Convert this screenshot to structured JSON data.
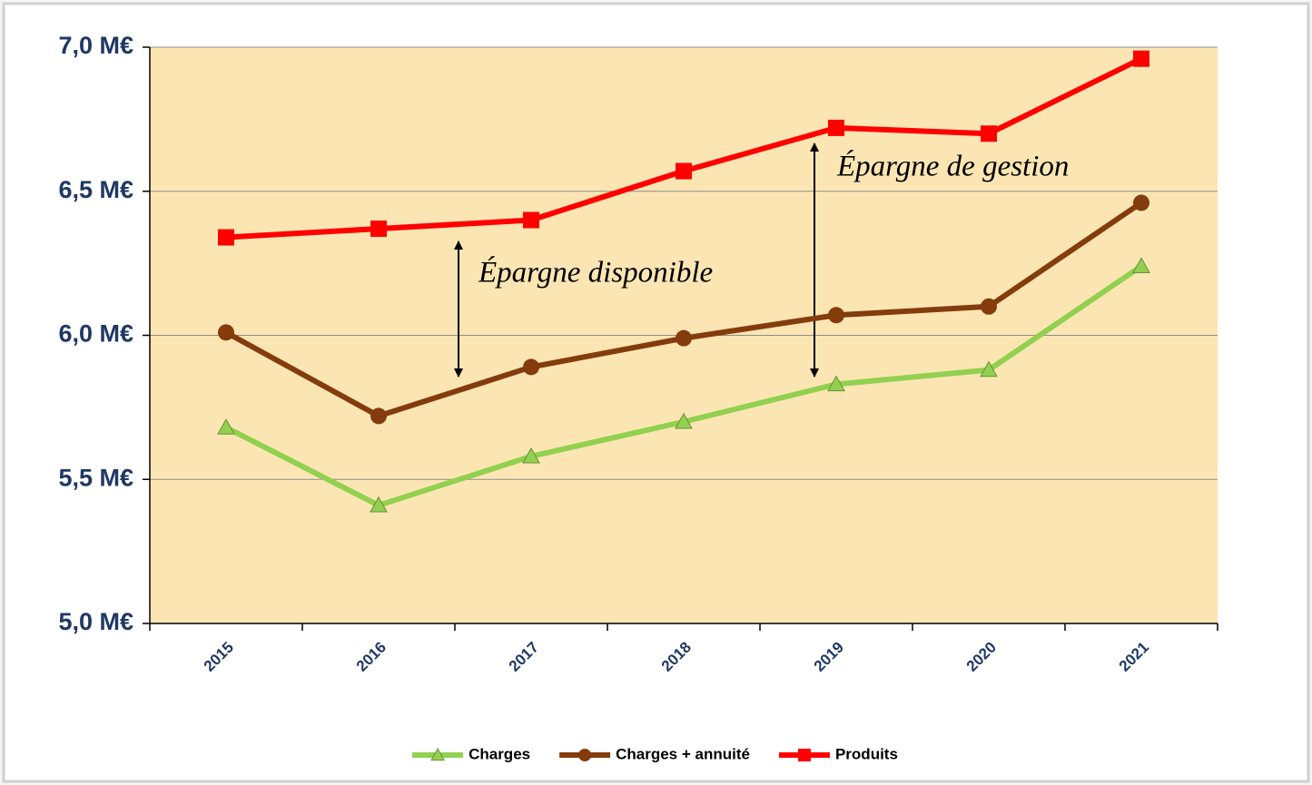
{
  "chart_data": {
    "type": "line",
    "categories": [
      "2015",
      "2016",
      "2017",
      "2018",
      "2019",
      "2020",
      "2021"
    ],
    "series": [
      {
        "name": "Charges",
        "color": "#92d050",
        "marker": "triangle",
        "values": [
          5.68,
          5.41,
          5.58,
          5.7,
          5.83,
          5.88,
          6.24
        ]
      },
      {
        "name": "Charges + annuité",
        "color": "#843c0c",
        "marker": "circle",
        "values": [
          6.01,
          5.72,
          5.89,
          5.99,
          6.07,
          6.1,
          6.46
        ]
      },
      {
        "name": "Produits",
        "color": "#ff0000",
        "marker": "square",
        "values": [
          6.34,
          6.37,
          6.4,
          6.57,
          6.72,
          6.7,
          6.96
        ]
      }
    ],
    "ylim": [
      5.0,
      7.0
    ],
    "yticks": [
      {
        "value": 5.0,
        "label": "5,0 M€"
      },
      {
        "value": 5.5,
        "label": "5,5 M€"
      },
      {
        "value": 6.0,
        "label": "6,0 M€"
      },
      {
        "value": 6.5,
        "label": "6,5 M€"
      },
      {
        "value": 7.0,
        "label": "7,0 M€"
      }
    ],
    "grid": true,
    "legend": "bottom",
    "annotations": [
      "Épargne disponible",
      "Épargne de gestion"
    ]
  }
}
